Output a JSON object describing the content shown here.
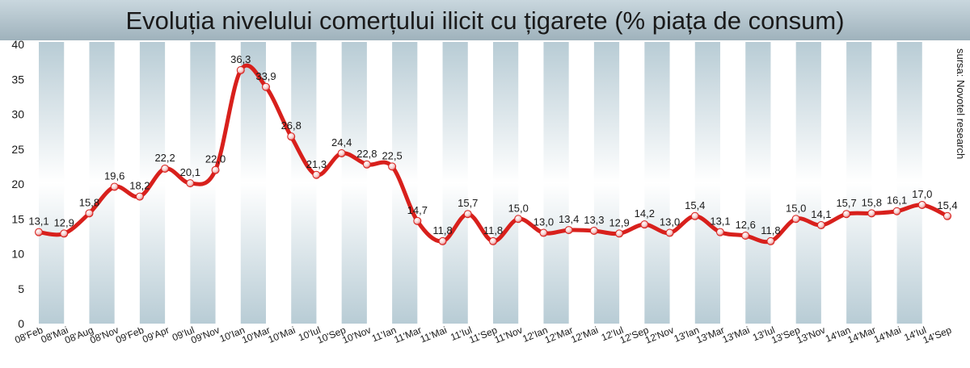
{
  "chart_data": {
    "type": "line",
    "title": "Evoluția nivelului comerțului ilicit cu țigarete (% piața de consum)",
    "source": "sursa: Novotel research",
    "xlabel": "",
    "ylabel": "",
    "ylim": [
      0,
      40
    ],
    "yticks": [
      0,
      5,
      10,
      15,
      20,
      25,
      30,
      35,
      40
    ],
    "legend": "none",
    "categories": [
      "08'Feb",
      "08'Mai",
      "08'Aug",
      "08'Nov",
      "09'Feb",
      "09'Apr",
      "09'Iul",
      "09'Nov",
      "10'Ian",
      "10'Mar",
      "10'Mai",
      "10'Iul",
      "10'Sep",
      "10'Nov",
      "11'Ian",
      "11'Mar",
      "11'Mai",
      "11'Iul",
      "11'Sep",
      "11'Nov",
      "12'Ian",
      "12'Mar",
      "12'Mai",
      "12'Iul",
      "12'Sep",
      "12'Nov",
      "13'Ian",
      "13'Mar",
      "13'Mai",
      "13'Iul",
      "13'Sep",
      "13'Nov",
      "14'Ian",
      "14'Mar",
      "14'Mai",
      "14'Iul",
      "14'Sep"
    ],
    "values": [
      13.1,
      12.9,
      15.8,
      19.6,
      18.2,
      22.2,
      20.1,
      22.0,
      36.3,
      33.9,
      26.8,
      21.3,
      24.4,
      22.8,
      22.5,
      14.7,
      11.8,
      15.7,
      11.8,
      15.0,
      13.0,
      13.4,
      13.3,
      12.9,
      14.2,
      13.0,
      15.4,
      13.1,
      12.6,
      11.8,
      15.0,
      14.1,
      15.7,
      15.8,
      16.1,
      17.0,
      15.4
    ],
    "value_labels": [
      "13,1",
      "12,9",
      "15,8",
      "19,6",
      "18,2",
      "22,2",
      "20,1",
      "22,0",
      "36,3",
      "33,9",
      "26,8",
      "21,3",
      "24,4",
      "22,8",
      "22,5",
      "14,7",
      "11,8",
      "15,7",
      "11,8",
      "15,0",
      "13,0",
      "13,4",
      "13,3",
      "12,9",
      "14,2",
      "13,0",
      "15,4",
      "13,1",
      "12,6",
      "11,8",
      "15,0",
      "14,1",
      "15,7",
      "15,8",
      "16,1",
      "17,0",
      "15,4"
    ],
    "colors": {
      "line": "#d8201c",
      "title_band": "#a9bcc6",
      "column_band": "#c6d6dd",
      "text": "#1a1a1a"
    }
  }
}
